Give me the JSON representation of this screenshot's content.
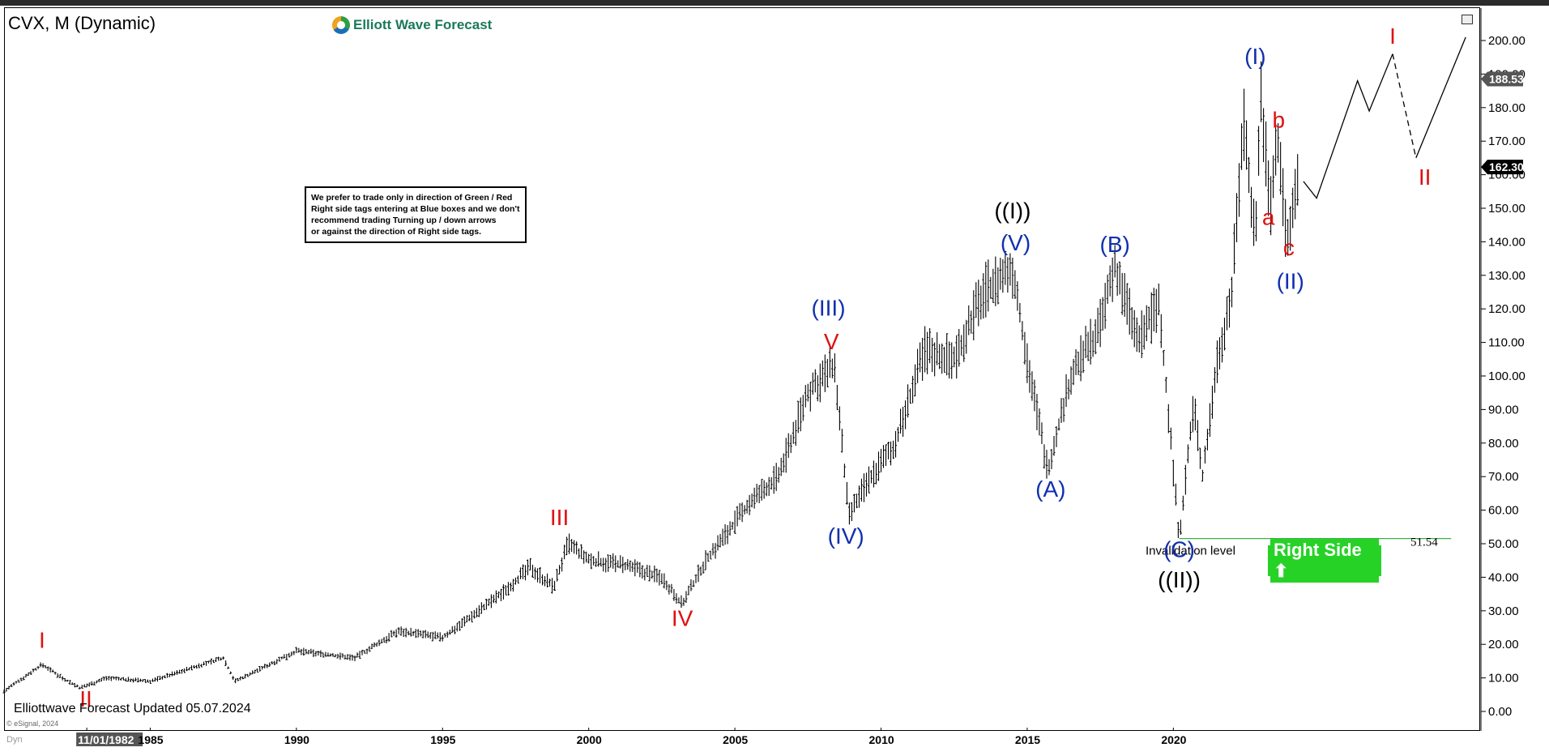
{
  "header": {
    "symbol": "CVX, M (Dynamic)",
    "logo_text": "Elliott Wave Forecast"
  },
  "notice": {
    "lines": [
      "We prefer to trade only in direction of Green / Red",
      "Right side tags entering at Blue boxes and we don't",
      "recommend trading Turning up / down arrows",
      "or against the direction of Right side tags."
    ]
  },
  "footer": {
    "updated": "Elliottwave Forecast Updated 05.07.2024",
    "copyright": "© eSignal, 2024",
    "dyn": "Dyn"
  },
  "right_side_tag": {
    "label": "Right Side",
    "color": "#27d227"
  },
  "colors": {
    "red_label": "#e01010",
    "blue_label": "#1030b0",
    "black_label": "#000000",
    "invalidation_line": "#3cb043"
  },
  "chart_data": {
    "type": "ohlc-bar",
    "ylim": [
      0,
      205
    ],
    "xlim": [
      1980.0,
      2030.3
    ],
    "y_ticks": [
      "0.00",
      "10.00",
      "20.00",
      "30.00",
      "40.00",
      "50.00",
      "60.00",
      "70.00",
      "80.00",
      "90.00",
      "100.00",
      "110.00",
      "120.00",
      "130.00",
      "140.00",
      "150.00",
      "160.00",
      "170.00",
      "180.00",
      "190.00",
      "200.00"
    ],
    "x_ticks": [
      {
        "x": 1982.83,
        "label": "11/01/1982",
        "highlight": true
      },
      {
        "x": 1985.0,
        "label": "1985"
      },
      {
        "x": 1990.0,
        "label": "1990"
      },
      {
        "x": 1995.0,
        "label": "1995"
      },
      {
        "x": 2000.0,
        "label": "2000"
      },
      {
        "x": 2005.0,
        "label": "2005"
      },
      {
        "x": 2010.0,
        "label": "2010"
      },
      {
        "x": 2015.0,
        "label": "2015"
      },
      {
        "x": 2020.0,
        "label": "2020"
      }
    ],
    "price_tags": [
      {
        "value": 188.53,
        "label": "188.53",
        "color": "#555555"
      },
      {
        "value": 162.3,
        "label": "162.30",
        "color": "#000000"
      }
    ],
    "price_path": [
      [
        1980.0,
        6
      ],
      [
        1981.3,
        14
      ],
      [
        1982.0,
        10
      ],
      [
        1982.6,
        7
      ],
      [
        1983.5,
        10
      ],
      [
        1985.0,
        9
      ],
      [
        1987.5,
        16
      ],
      [
        1987.9,
        9
      ],
      [
        1990.0,
        18
      ],
      [
        1992.0,
        16
      ],
      [
        1993.5,
        24
      ],
      [
        1995.0,
        22
      ],
      [
        1997.0,
        35
      ],
      [
        1998.0,
        43
      ],
      [
        1998.8,
        37
      ],
      [
        1999.3,
        50
      ],
      [
        2000.0,
        45
      ],
      [
        2001.0,
        44
      ],
      [
        2002.5,
        40
      ],
      [
        2003.2,
        32
      ],
      [
        2004.0,
        45
      ],
      [
        2005.5,
        62
      ],
      [
        2006.5,
        70
      ],
      [
        2007.5,
        95
      ],
      [
        2008.4,
        103
      ],
      [
        2008.9,
        58
      ],
      [
        2009.5,
        68
      ],
      [
        2010.5,
        80
      ],
      [
        2011.5,
        108
      ],
      [
        2012.5,
        105
      ],
      [
        2013.5,
        125
      ],
      [
        2014.5,
        132
      ],
      [
        2015.0,
        105
      ],
      [
        2015.7,
        72
      ],
      [
        2016.5,
        100
      ],
      [
        2017.5,
        115
      ],
      [
        2018.0,
        133
      ],
      [
        2018.8,
        110
      ],
      [
        2019.5,
        122
      ],
      [
        2020.2,
        52
      ],
      [
        2020.7,
        92
      ],
      [
        2021.0,
        70
      ],
      [
        2021.5,
        105
      ],
      [
        2022.0,
        125
      ],
      [
        2022.4,
        178
      ],
      [
        2022.8,
        140
      ],
      [
        2023.0,
        185
      ],
      [
        2023.3,
        150
      ],
      [
        2023.6,
        172
      ],
      [
        2023.9,
        138
      ],
      [
        2024.3,
        162
      ]
    ],
    "projection": [
      {
        "points": [
          [
            2024.45,
            158
          ],
          [
            2024.9,
            153
          ],
          [
            2026.3,
            188
          ],
          [
            2026.7,
            179
          ],
          [
            2027.5,
            196
          ]
        ],
        "dashed": false
      },
      {
        "points": [
          [
            2027.5,
            196
          ],
          [
            2028.3,
            165
          ]
        ],
        "dashed": true
      },
      {
        "points": [
          [
            2028.3,
            165
          ],
          [
            2030.0,
            201
          ]
        ],
        "dashed": false
      }
    ],
    "invalidation": {
      "value": 51.54,
      "label": "51.54",
      "text": "Invalidation level",
      "x_start": 2020.2,
      "x_end": 2029.5
    },
    "wave_labels": [
      {
        "text": "I",
        "x": 1981.3,
        "y": 19,
        "color": "#e01010"
      },
      {
        "text": "II",
        "x": 1982.8,
        "y": 1.5,
        "color": "#e01010"
      },
      {
        "text": "III",
        "x": 1999.0,
        "y": 55.5,
        "color": "#e01010"
      },
      {
        "text": "IV",
        "x": 2003.2,
        "y": 25.5,
        "color": "#e01010"
      },
      {
        "text": "V",
        "x": 2008.3,
        "y": 108,
        "color": "#e01010"
      },
      {
        "text": "(III)",
        "x": 2008.2,
        "y": 118,
        "color": "#1030b0"
      },
      {
        "text": "(IV)",
        "x": 2008.8,
        "y": 50,
        "color": "#1030b0"
      },
      {
        "text": "((I))",
        "x": 2014.5,
        "y": 147,
        "color": "#000000"
      },
      {
        "text": "(V)",
        "x": 2014.6,
        "y": 137.5,
        "color": "#1030b0"
      },
      {
        "text": "(A)",
        "x": 2015.8,
        "y": 64,
        "color": "#1030b0"
      },
      {
        "text": "(B)",
        "x": 2018.0,
        "y": 137,
        "color": "#1030b0"
      },
      {
        "text": "(C)",
        "x": 2020.2,
        "y": 46,
        "color": "#1030b0"
      },
      {
        "text": "((II))",
        "x": 2020.2,
        "y": 37,
        "color": "#000000"
      },
      {
        "text": "(I)",
        "x": 2022.8,
        "y": 193,
        "color": "#1030b0"
      },
      {
        "text": "b",
        "x": 2023.6,
        "y": 174,
        "color": "#e01010"
      },
      {
        "text": "a",
        "x": 2023.25,
        "y": 145,
        "color": "#e01010"
      },
      {
        "text": "c",
        "x": 2023.95,
        "y": 136,
        "color": "#e01010"
      },
      {
        "text": "(II)",
        "x": 2024.0,
        "y": 126,
        "color": "#1030b0"
      },
      {
        "text": "I",
        "x": 2027.5,
        "y": 199,
        "color": "#e01010"
      },
      {
        "text": "II",
        "x": 2028.6,
        "y": 157,
        "color": "#e01010"
      }
    ]
  }
}
